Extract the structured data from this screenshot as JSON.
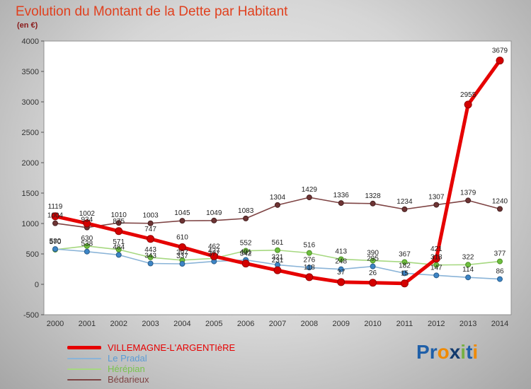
{
  "header": {
    "title": "Evolution du Montant de la Dette par Habitant",
    "subtitle": "(en €)"
  },
  "logo": {
    "name": "Proxiti",
    "letters": [
      {
        "ch": "P",
        "color": "#1f5fa8"
      },
      {
        "ch": "r",
        "color": "#1f5fa8"
      },
      {
        "ch": "o",
        "color": "#f08a00"
      },
      {
        "ch": "x",
        "color": "#123a6d"
      },
      {
        "ch": "i",
        "color": "#76b043"
      },
      {
        "ch": "t",
        "color": "#1f5fa8"
      },
      {
        "ch": "i",
        "color": "#f08a00"
      }
    ]
  },
  "colors": {
    "title": "#e0401e",
    "subtitle": "#8a1a1a",
    "value_labels": "#222222",
    "axis_text": "#333333",
    "plot_background": "#ffffff",
    "plot_border": "#8f8f8f"
  },
  "chart_data": {
    "type": "line",
    "x": [
      2000,
      2001,
      2002,
      2003,
      2004,
      2005,
      2006,
      2007,
      2008,
      2009,
      2010,
      2011,
      2012,
      2013,
      2014
    ],
    "ylim": [
      -500,
      4000
    ],
    "yticks": [
      4000,
      3500,
      3000,
      2500,
      2000,
      1500,
      1000,
      500,
      0,
      -500
    ],
    "grid": false,
    "legend_position": "bottom-left",
    "series": [
      {
        "name": "VILLEMAGNE-L'ARGENTIèRE",
        "line_color": "#e60000",
        "marker_color": "#d40000",
        "marker_edge": "#950000",
        "text_color": "#e60000",
        "line_width": 5,
        "marker_r": 5,
        "values": [
          1119,
          1002,
          875,
          747,
          610,
          462,
          342,
          231,
          118,
          37,
          26,
          15,
          421,
          2955,
          3679
        ]
      },
      {
        "name": "Le Pradal",
        "line_color": "#8ab4d8",
        "marker_color": "#3d85c6",
        "marker_edge": "#2a5d8a",
        "text_color": "#5b9bd5",
        "line_width": 1.6,
        "marker_r": 3.5,
        "values": [
          580,
          538,
          484,
          343,
          337,
          377,
          401,
          321,
          276,
          248,
          295,
          182,
          147,
          114,
          86
        ]
      },
      {
        "name": "Hérépian",
        "line_color": "#a6d880",
        "marker_color": "#6fbf3f",
        "marker_edge": "#4c8f26",
        "text_color": "#79c34d",
        "line_width": 1.6,
        "marker_r": 3.5,
        "values": [
          570,
          630,
          571,
          443,
          397,
          427,
          552,
          561,
          516,
          413,
          390,
          367,
          318,
          322,
          377
        ]
      },
      {
        "name": "Bédarieux",
        "line_color": "#7e4343",
        "marker_color": "#6e3434",
        "marker_edge": "#462020",
        "text_color": "#7e4343",
        "line_width": 1.6,
        "marker_r": 3.5,
        "values": [
          1004,
          934,
          1010,
          1003,
          1045,
          1049,
          1083,
          1304,
          1429,
          1336,
          1328,
          1234,
          1307,
          1379,
          1240
        ]
      }
    ]
  }
}
